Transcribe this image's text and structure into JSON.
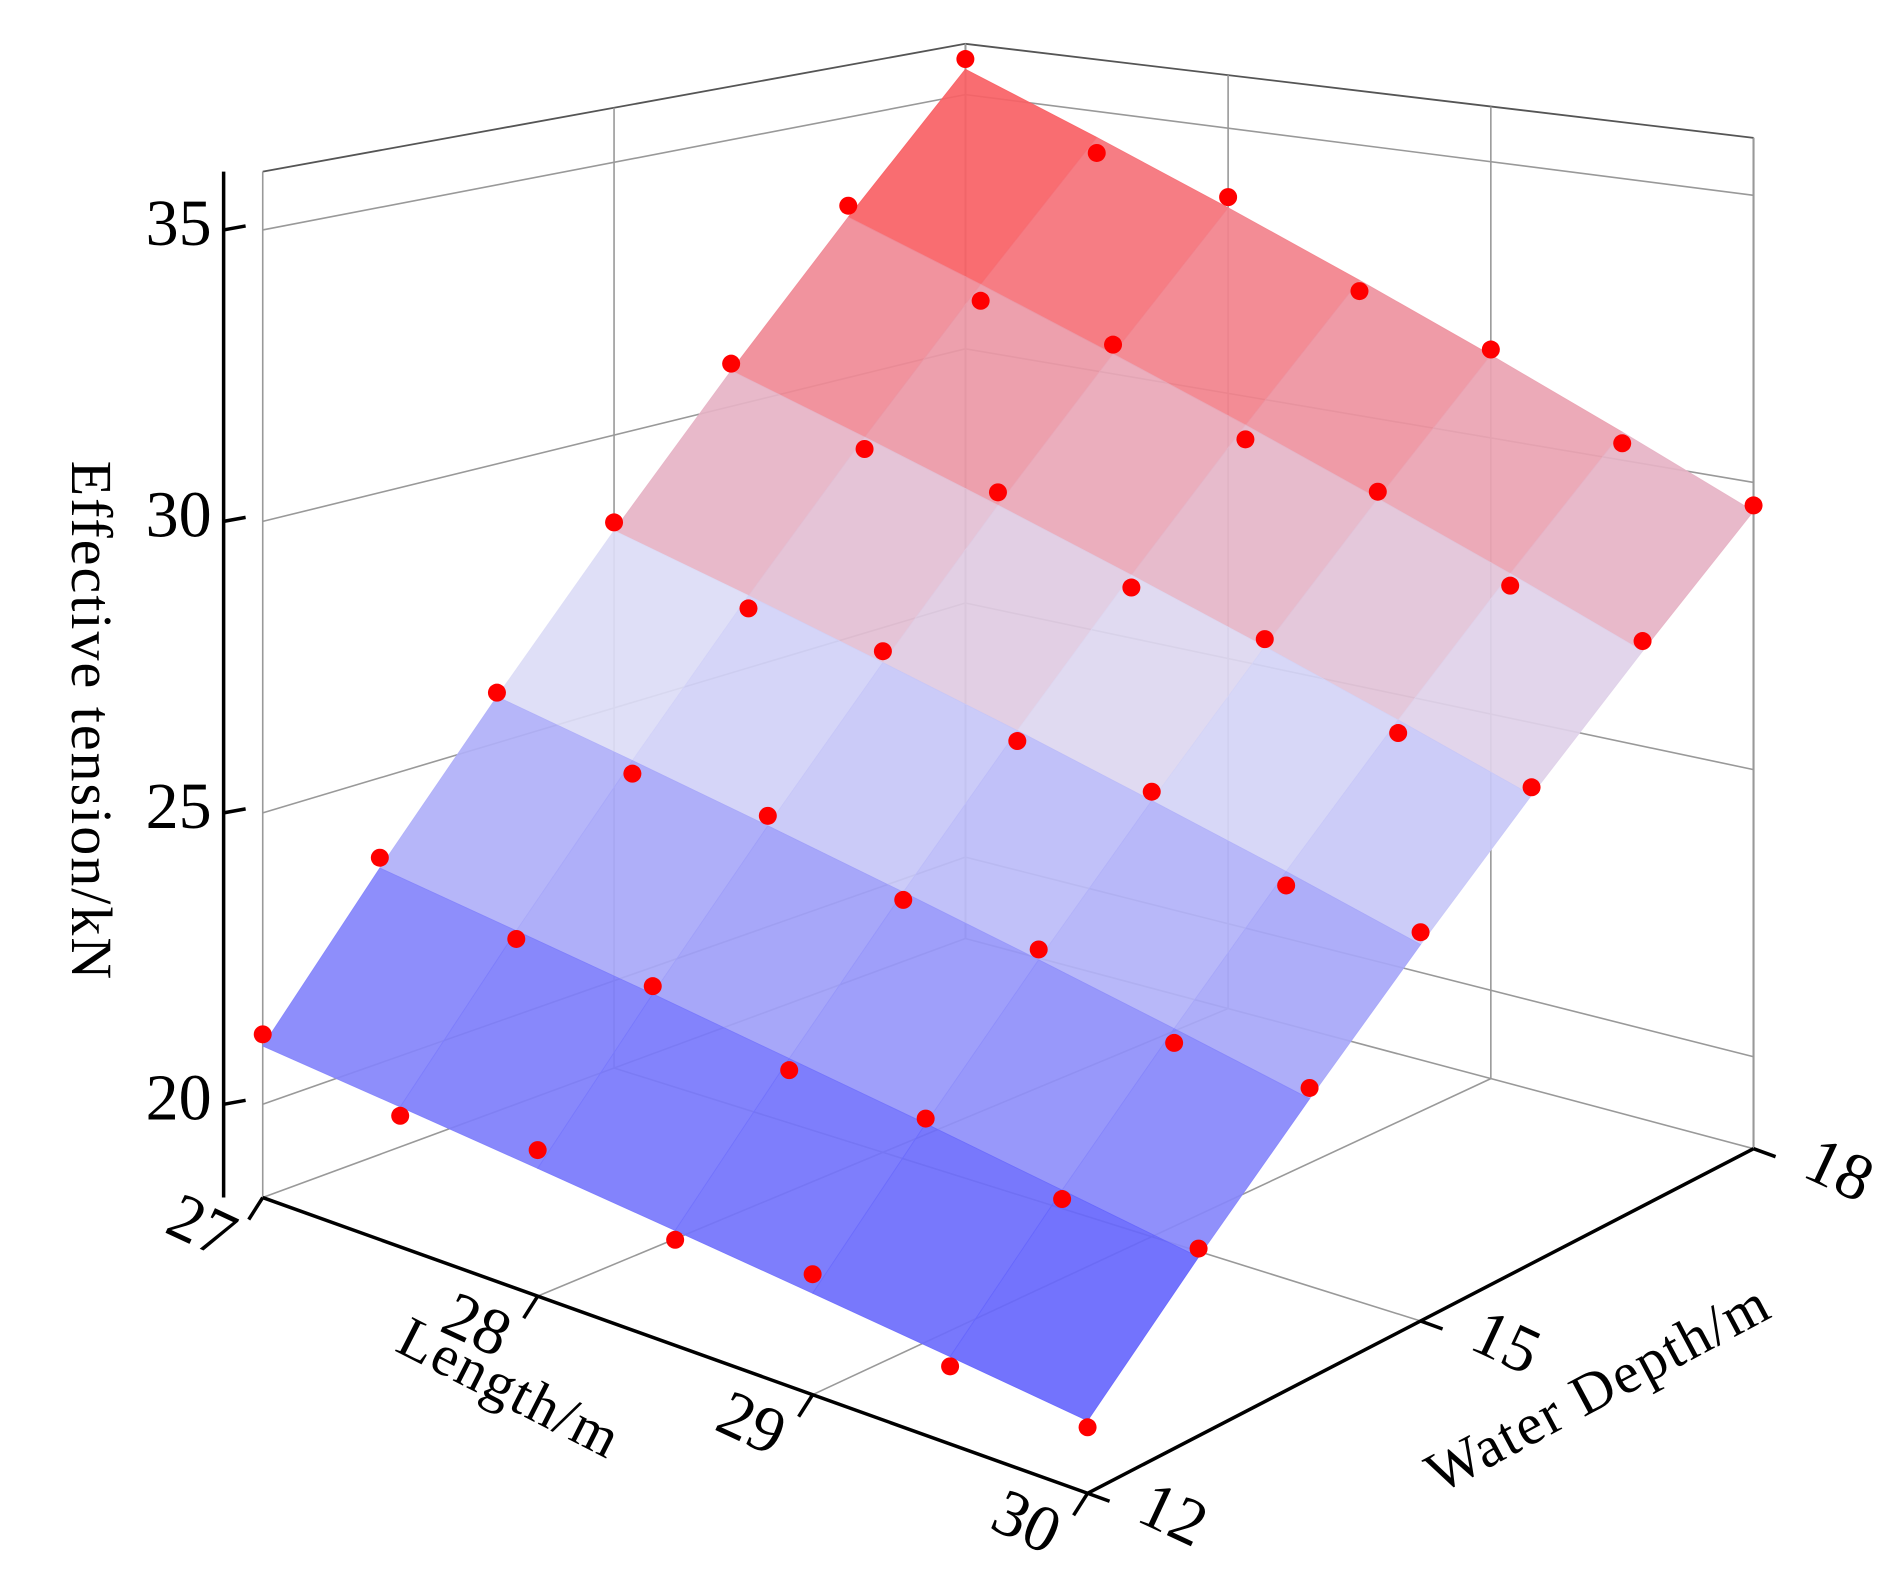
{
  "chart_data": {
    "type": "surface3d",
    "x_label": "Length/m",
    "y_label": "Water Depth/m",
    "z_label": "Effective tension/kN",
    "x": [
      27,
      27.5,
      28,
      28.5,
      29,
      29.5,
      30
    ],
    "y": [
      12,
      13,
      14,
      15,
      16,
      17,
      18
    ],
    "xlim": [
      27,
      30
    ],
    "ylim": [
      12,
      18
    ],
    "zlim": [
      18.4,
      36
    ],
    "xticks": [
      27,
      28,
      29,
      30
    ],
    "yticks": [
      12,
      15,
      18
    ],
    "zticks": [
      20,
      25,
      30,
      35
    ],
    "grid": true,
    "surface_colors": [
      "#4040ff",
      "#dcdcf6",
      "#ff4a4a"
    ],
    "point_color": "#ff0000",
    "surface_z": [
      [
        21,
        20.75,
        20.5,
        20.25,
        20,
        19.75,
        19.5
      ],
      [
        23.42,
        23.04,
        22.67,
        22.29,
        21.92,
        21.54,
        21.17
      ],
      [
        25.83,
        25.33,
        24.83,
        24.33,
        23.83,
        23.33,
        22.83
      ],
      [
        28.25,
        27.63,
        27.0,
        26.38,
        25.75,
        25.13,
        24.5
      ],
      [
        30.67,
        29.92,
        29.17,
        28.42,
        27.67,
        26.92,
        26.17
      ],
      [
        33.08,
        32.21,
        31.33,
        30.46,
        29.58,
        28.71,
        27.83
      ],
      [
        35.5,
        34.5,
        33.5,
        32.5,
        31.5,
        30.5,
        29.5
      ]
    ],
    "scatter_z": [
      [
        21.2,
        20.6,
        20.8,
        20.1,
        20.3,
        19.6,
        19.4
      ],
      [
        23.6,
        22.9,
        22.8,
        22.1,
        22.0,
        21.4,
        21.3
      ],
      [
        25.9,
        25.1,
        25.0,
        24.2,
        24.0,
        23.1,
        23.0
      ],
      [
        28.4,
        27.4,
        27.2,
        26.2,
        25.9,
        24.9,
        24.7
      ],
      [
        30.8,
        29.7,
        29.4,
        28.2,
        27.8,
        26.7,
        26.3
      ],
      [
        33.3,
        31.9,
        31.5,
        30.2,
        29.7,
        28.5,
        28.0
      ],
      [
        35.7,
        34.2,
        33.7,
        32.3,
        31.6,
        30.3,
        29.6
      ]
    ]
  }
}
